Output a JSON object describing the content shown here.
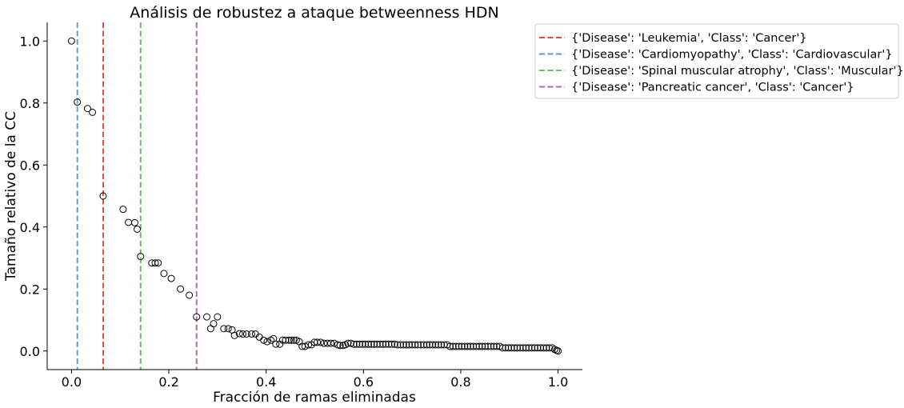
{
  "chart_data": {
    "type": "scatter",
    "title": "Análisis de robustez a ataque betweenness HDN",
    "xlabel": "Fracción de ramas eliminadas",
    "ylabel": "Tamaño relativo de la CC",
    "xlim": [
      -0.05,
      1.05
    ],
    "ylim": [
      -0.06,
      1.06
    ],
    "xticks": [
      0.0,
      0.2,
      0.4,
      0.6,
      0.8,
      1.0
    ],
    "xtick_labels": [
      "0.0",
      "0.2",
      "0.4",
      "0.6",
      "0.8",
      "1.0"
    ],
    "yticks": [
      0.0,
      0.2,
      0.4,
      0.6,
      0.8,
      1.0
    ],
    "ytick_labels": [
      "0.0",
      "0.2",
      "0.4",
      "0.6",
      "0.8",
      "1.0"
    ],
    "grid": false,
    "legend_position": "top-right",
    "marker": {
      "style": "open-circle",
      "edge_color": "#000000"
    },
    "points": [
      [
        0.0,
        1.0
      ],
      [
        0.012,
        0.803
      ],
      [
        0.033,
        0.782
      ],
      [
        0.043,
        0.77
      ],
      [
        0.065,
        0.5
      ],
      [
        0.106,
        0.457
      ],
      [
        0.117,
        0.415
      ],
      [
        0.13,
        0.414
      ],
      [
        0.135,
        0.393
      ],
      [
        0.142,
        0.305
      ],
      [
        0.165,
        0.284
      ],
      [
        0.172,
        0.284
      ],
      [
        0.178,
        0.284
      ],
      [
        0.19,
        0.25
      ],
      [
        0.205,
        0.234
      ],
      [
        0.224,
        0.2
      ],
      [
        0.242,
        0.18
      ],
      [
        0.257,
        0.11
      ],
      [
        0.278,
        0.11
      ],
      [
        0.286,
        0.072
      ],
      [
        0.292,
        0.088
      ],
      [
        0.3,
        0.11
      ],
      [
        0.313,
        0.072
      ],
      [
        0.322,
        0.072
      ],
      [
        0.33,
        0.068
      ],
      [
        0.335,
        0.05
      ],
      [
        0.345,
        0.056
      ],
      [
        0.352,
        0.055
      ],
      [
        0.36,
        0.055
      ],
      [
        0.37,
        0.055
      ],
      [
        0.378,
        0.055
      ],
      [
        0.386,
        0.045
      ],
      [
        0.395,
        0.035
      ],
      [
        0.402,
        0.03
      ],
      [
        0.41,
        0.035
      ],
      [
        0.415,
        0.04
      ],
      [
        0.42,
        0.022
      ],
      [
        0.428,
        0.022
      ],
      [
        0.434,
        0.035
      ],
      [
        0.44,
        0.035
      ],
      [
        0.447,
        0.035
      ],
      [
        0.452,
        0.035
      ],
      [
        0.457,
        0.035
      ],
      [
        0.462,
        0.035
      ],
      [
        0.468,
        0.03
      ],
      [
        0.474,
        0.015
      ],
      [
        0.48,
        0.015
      ],
      [
        0.487,
        0.02
      ],
      [
        0.493,
        0.02
      ],
      [
        0.499,
        0.028
      ],
      [
        0.505,
        0.028
      ],
      [
        0.512,
        0.028
      ],
      [
        0.519,
        0.025
      ],
      [
        0.526,
        0.025
      ],
      [
        0.533,
        0.025
      ],
      [
        0.54,
        0.025
      ],
      [
        0.547,
        0.02
      ],
      [
        0.552,
        0.018
      ],
      [
        0.558,
        0.018
      ],
      [
        0.563,
        0.02
      ],
      [
        0.568,
        0.025
      ],
      [
        0.574,
        0.025
      ],
      [
        0.58,
        0.022
      ],
      [
        0.586,
        0.022
      ],
      [
        0.592,
        0.022
      ],
      [
        0.598,
        0.022
      ],
      [
        0.604,
        0.022
      ],
      [
        0.61,
        0.022
      ],
      [
        0.616,
        0.022
      ],
      [
        0.622,
        0.022
      ],
      [
        0.628,
        0.022
      ],
      [
        0.634,
        0.022
      ],
      [
        0.64,
        0.022
      ],
      [
        0.646,
        0.022
      ],
      [
        0.652,
        0.022
      ],
      [
        0.658,
        0.022
      ],
      [
        0.664,
        0.022
      ],
      [
        0.67,
        0.02
      ],
      [
        0.676,
        0.02
      ],
      [
        0.682,
        0.02
      ],
      [
        0.688,
        0.02
      ],
      [
        0.694,
        0.02
      ],
      [
        0.7,
        0.02
      ],
      [
        0.706,
        0.02
      ],
      [
        0.712,
        0.02
      ],
      [
        0.718,
        0.02
      ],
      [
        0.724,
        0.02
      ],
      [
        0.73,
        0.02
      ],
      [
        0.736,
        0.02
      ],
      [
        0.742,
        0.02
      ],
      [
        0.748,
        0.02
      ],
      [
        0.754,
        0.02
      ],
      [
        0.76,
        0.02
      ],
      [
        0.766,
        0.02
      ],
      [
        0.772,
        0.02
      ],
      [
        0.778,
        0.015
      ],
      [
        0.784,
        0.015
      ],
      [
        0.79,
        0.015
      ],
      [
        0.796,
        0.015
      ],
      [
        0.802,
        0.015
      ],
      [
        0.808,
        0.015
      ],
      [
        0.814,
        0.015
      ],
      [
        0.82,
        0.015
      ],
      [
        0.826,
        0.015
      ],
      [
        0.832,
        0.015
      ],
      [
        0.838,
        0.015
      ],
      [
        0.844,
        0.015
      ],
      [
        0.85,
        0.015
      ],
      [
        0.856,
        0.015
      ],
      [
        0.862,
        0.015
      ],
      [
        0.868,
        0.015
      ],
      [
        0.874,
        0.015
      ],
      [
        0.88,
        0.015
      ],
      [
        0.886,
        0.01
      ],
      [
        0.892,
        0.01
      ],
      [
        0.898,
        0.01
      ],
      [
        0.904,
        0.01
      ],
      [
        0.91,
        0.01
      ],
      [
        0.916,
        0.01
      ],
      [
        0.922,
        0.01
      ],
      [
        0.928,
        0.01
      ],
      [
        0.934,
        0.01
      ],
      [
        0.94,
        0.01
      ],
      [
        0.946,
        0.01
      ],
      [
        0.952,
        0.01
      ],
      [
        0.958,
        0.01
      ],
      [
        0.964,
        0.01
      ],
      [
        0.97,
        0.01
      ],
      [
        0.976,
        0.01
      ],
      [
        0.982,
        0.01
      ],
      [
        0.988,
        0.01
      ],
      [
        0.993,
        0.005
      ],
      [
        0.997,
        0.002
      ],
      [
        1.0,
        0.0
      ]
    ],
    "vlines": [
      {
        "x": 0.065,
        "color": "#e24a4a",
        "label": "{'Disease': 'Leukemia', 'Class': 'Cancer'}"
      },
      {
        "x": 0.012,
        "color": "#6b9ac4",
        "label": "{'Disease': 'Cardiomyopathy', 'Class': 'Cardiovascular'}"
      },
      {
        "x": 0.142,
        "color": "#6abd66",
        "label": "{'Disease': 'Spinal muscular atrophy', 'Class': 'Muscular'}"
      },
      {
        "x": 0.257,
        "color": "#a970ae",
        "label": "{'Disease': 'Pancreatic cancer', 'Class': 'Cancer'}"
      }
    ]
  }
}
